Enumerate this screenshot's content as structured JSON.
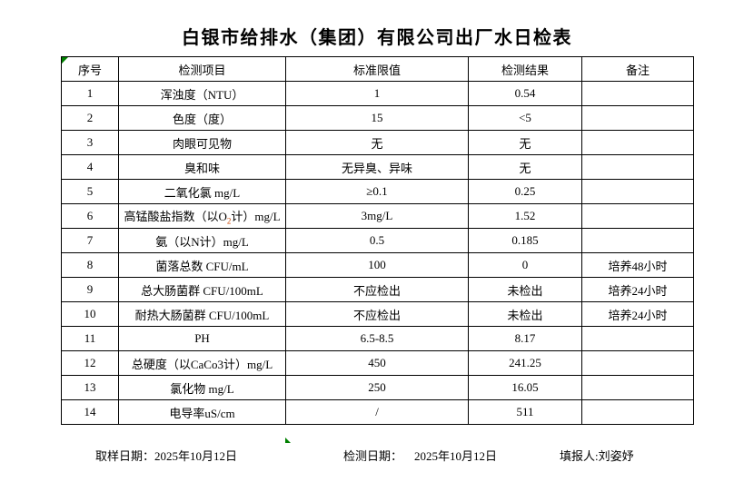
{
  "title": "白银市给排水（集团）有限公司出厂水日检表",
  "colors": {
    "background": "#ffffff",
    "text": "#000000",
    "border": "#000000",
    "marker_green": "#008000",
    "oxygen_subscript_red": "#cc4400"
  },
  "table": {
    "headers": {
      "no": "序号",
      "item": "检测项目",
      "limit": "标准限值",
      "result": "检测结果",
      "remark": "备注"
    },
    "rows": [
      {
        "no": "1",
        "item": "浑浊度（NTU）",
        "limit": "1",
        "result": "0.54",
        "remark": ""
      },
      {
        "no": "2",
        "item": "色度（度）",
        "limit": "15",
        "result": "<5",
        "remark": ""
      },
      {
        "no": "3",
        "item": "肉眼可见物",
        "limit": "无",
        "result": "无",
        "remark": ""
      },
      {
        "no": "4",
        "item": "臭和味",
        "limit": "无异臭、异味",
        "result": "无",
        "remark": ""
      },
      {
        "no": "5",
        "item": "二氧化氯 mg/L",
        "limit": "≥0.1",
        "result": "0.25",
        "remark": ""
      },
      {
        "no": "6",
        "item": "高锰酸盐指数（以O2计）mg/L",
        "item_prefix": "高锰酸盐指数（以O",
        "item_sub": "2",
        "item_suffix": "计）mg/L",
        "limit": "3mg/L",
        "result": "1.52",
        "remark": ""
      },
      {
        "no": "7",
        "item": "氨（以N计）mg/L",
        "limit": "0.5",
        "result": "0.185",
        "remark": ""
      },
      {
        "no": "8",
        "item": "菌落总数 CFU/mL",
        "limit": "100",
        "result": "0",
        "remark": "培养48小时"
      },
      {
        "no": "9",
        "item": "总大肠菌群 CFU/100mL",
        "limit": "不应检出",
        "result": "未检出",
        "remark": "培养24小时"
      },
      {
        "no": "10",
        "item": "耐热大肠菌群 CFU/100mL",
        "limit": "不应检出",
        "result": "未检出",
        "remark": "培养24小时"
      },
      {
        "no": "11",
        "item": "PH",
        "limit": "6.5-8.5",
        "result": "8.17",
        "remark": ""
      },
      {
        "no": "12",
        "item": "总硬度（以CaCo3计）mg/L",
        "limit": "450",
        "result": "241.25",
        "remark": ""
      },
      {
        "no": "13",
        "item": "氯化物 mg/L",
        "limit": "250",
        "result": "16.05",
        "remark": ""
      },
      {
        "no": "14",
        "item": "电导率uS/cm",
        "limit": "/",
        "result": "511",
        "remark": ""
      }
    ]
  },
  "footer": {
    "sampling_date_label": "取样日期：",
    "sampling_date_value": "2025年10月12日",
    "test_date_label": "检测日期：",
    "test_date_value": "2025年10月12日",
    "reporter_label": "填报人:",
    "reporter_value": "刘姿妤"
  }
}
